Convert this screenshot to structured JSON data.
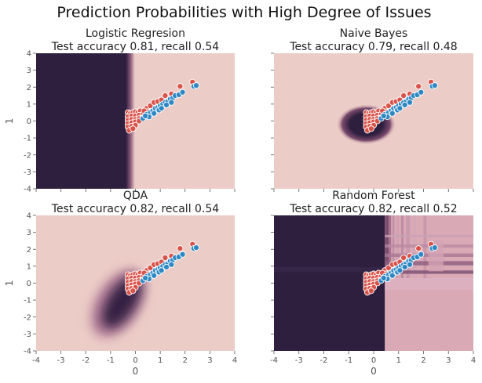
{
  "figure": {
    "suptitle": "Prediction Probabilities with High Degree of Issues"
  },
  "colors": {
    "background_light": "#ecccc7",
    "background_dark": "#2f1f3f",
    "class0_point": "#d9534a",
    "class1_point": "#2e88c4",
    "point_edge": "#ffffff",
    "tick_text": "#555555"
  },
  "chart_data": [
    {
      "type": "scatter",
      "title": "Logistic Regresion",
      "subtitle": "Test accuracy 0.81, recall 0.54",
      "xlabel": "",
      "ylabel": "1",
      "xlim": [
        -4,
        4
      ],
      "ylim": [
        -4,
        4
      ],
      "xticks": [
        -4,
        -3,
        -2,
        -1,
        0,
        1,
        2,
        3,
        4
      ],
      "yticks": [
        -4,
        -3,
        -2,
        -1,
        0,
        1,
        2,
        3,
        4
      ],
      "show_xticklabels": false,
      "show_yticklabels": true,
      "background": {
        "kind": "linear_boundary",
        "boundary_x": -0.2,
        "softness": 0.18
      },
      "grid": false
    },
    {
      "type": "scatter",
      "title": "Naive Bayes",
      "subtitle": "Test accuracy 0.79, recall 0.48",
      "xlabel": "",
      "ylabel": "",
      "xlim": [
        -4,
        4
      ],
      "ylim": [
        -4,
        4
      ],
      "xticks": [
        -4,
        -3,
        -2,
        -1,
        0,
        1,
        2,
        3,
        4
      ],
      "yticks": [
        -4,
        -3,
        -2,
        -1,
        0,
        1,
        2,
        3,
        4
      ],
      "show_xticklabels": false,
      "show_yticklabels": false,
      "background": {
        "kind": "radial",
        "center": [
          -0.3,
          -0.2
        ],
        "radius": 1.2
      },
      "grid": false
    },
    {
      "type": "scatter",
      "title": "QDA",
      "subtitle": "Test accuracy 0.82, recall 0.54",
      "xlabel": "0",
      "ylabel": "1",
      "xlim": [
        -4,
        4
      ],
      "ylim": [
        -4,
        4
      ],
      "xticks": [
        -4,
        -3,
        -2,
        -1,
        0,
        1,
        2,
        3,
        4
      ],
      "yticks": [
        -4,
        -3,
        -2,
        -1,
        0,
        1,
        2,
        3,
        4
      ],
      "show_xticklabels": true,
      "show_yticklabels": true,
      "background": {
        "kind": "elongated",
        "center": [
          -0.7,
          -1.2
        ],
        "angle_deg": 58,
        "major": 2.2,
        "minor": 0.55
      },
      "grid": false
    },
    {
      "type": "scatter",
      "title": "Random Forest",
      "subtitle": "Test accuracy 0.82, recall 0.52",
      "xlabel": "0",
      "ylabel": "",
      "xlim": [
        -4,
        4
      ],
      "ylim": [
        -4,
        4
      ],
      "xticks": [
        -4,
        -3,
        -2,
        -1,
        0,
        1,
        2,
        3,
        4
      ],
      "yticks": [
        -4,
        -3,
        -2,
        -1,
        0,
        1,
        2,
        3,
        4
      ],
      "show_xticklabels": true,
      "show_yticklabels": false,
      "background": {
        "kind": "blocks",
        "boundary_x": 0.45
      },
      "grid": false
    }
  ],
  "points": {
    "class0": [
      [
        -0.3,
        0.5
      ],
      [
        -0.2,
        0.45
      ],
      [
        -0.1,
        0.5
      ],
      [
        0.0,
        0.55
      ],
      [
        0.1,
        0.5
      ],
      [
        0.2,
        0.6
      ],
      [
        -0.3,
        0.25
      ],
      [
        -0.15,
        0.3
      ],
      [
        0.0,
        0.3
      ],
      [
        0.15,
        0.35
      ],
      [
        0.3,
        0.4
      ],
      [
        -0.3,
        0.05
      ],
      [
        -0.15,
        0.1
      ],
      [
        0.0,
        0.1
      ],
      [
        0.15,
        0.15
      ],
      [
        0.3,
        0.2
      ],
      [
        -0.3,
        -0.15
      ],
      [
        -0.15,
        -0.1
      ],
      [
        0.0,
        -0.05
      ],
      [
        0.15,
        0.0
      ],
      [
        -0.3,
        -0.35
      ],
      [
        -0.15,
        -0.3
      ],
      [
        0.0,
        -0.25
      ],
      [
        -0.25,
        -0.55
      ],
      [
        -0.1,
        -0.45
      ],
      [
        0.45,
        0.75
      ],
      [
        0.6,
        0.9
      ],
      [
        0.75,
        1.1
      ],
      [
        0.9,
        1.15
      ],
      [
        1.05,
        1.25
      ],
      [
        1.2,
        1.5
      ],
      [
        1.45,
        1.6
      ],
      [
        1.8,
        2.05
      ],
      [
        2.3,
        2.3
      ],
      [
        0.5,
        0.55
      ],
      [
        0.35,
        0.6
      ]
    ],
    "class1": [
      [
        0.45,
        0.4
      ],
      [
        0.6,
        0.5
      ],
      [
        0.7,
        0.6
      ],
      [
        0.8,
        0.75
      ],
      [
        0.9,
        0.8
      ],
      [
        1.0,
        0.9
      ],
      [
        1.1,
        1.0
      ],
      [
        1.2,
        1.1
      ],
      [
        1.3,
        1.15
      ],
      [
        1.4,
        1.3
      ],
      [
        1.5,
        1.35
      ],
      [
        1.6,
        1.5
      ],
      [
        1.75,
        1.55
      ],
      [
        1.9,
        1.7
      ],
      [
        2.35,
        2.05
      ],
      [
        2.45,
        2.1
      ],
      [
        0.55,
        0.25
      ],
      [
        0.75,
        0.45
      ],
      [
        0.95,
        0.65
      ],
      [
        1.05,
        0.75
      ],
      [
        1.25,
        0.95
      ],
      [
        0.3,
        0.15
      ],
      [
        0.4,
        0.3
      ],
      [
        1.45,
        1.1
      ]
    ]
  }
}
